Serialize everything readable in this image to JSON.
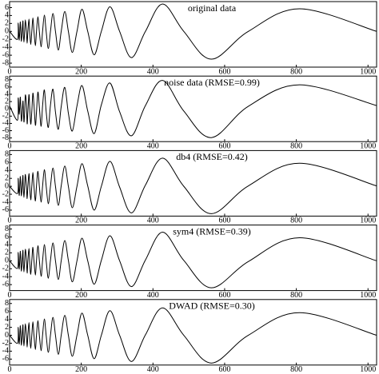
{
  "chart_data": [
    {
      "type": "line",
      "title": "original data",
      "color": "#000000",
      "x": [
        0,
        22,
        24,
        27,
        30,
        33,
        37,
        38,
        40,
        42,
        44,
        47,
        49,
        51,
        54,
        56,
        59,
        62,
        65,
        68,
        72,
        75,
        79,
        83,
        88,
        92,
        97,
        102,
        108,
        114,
        121,
        128,
        136,
        144,
        154,
        164,
        175,
        188,
        202,
        218,
        236,
        256,
        280,
        307,
        340,
        379,
        427,
        486,
        563,
        666,
        809,
        1024
      ],
      "values": [
        0,
        -2.0,
        2.1,
        -2.2,
        2.4,
        -2.5,
        2.6,
        0,
        -2.7,
        0,
        2.9,
        0,
        -3.0,
        0,
        3.1,
        0,
        -3.3,
        0,
        3.4,
        0,
        -3.6,
        0,
        3.7,
        0,
        -3.9,
        0,
        4.1,
        0,
        -4.3,
        0,
        4.5,
        0,
        -4.7,
        0,
        5.0,
        0,
        -5.3,
        0,
        5.6,
        0,
        -5.9,
        0,
        6.2,
        0,
        -6.6,
        0,
        6.9,
        0,
        -7.0,
        0,
        5.7,
        0
      ],
      "xlim": [
        0,
        1024
      ],
      "ylim": [
        -9,
        7.5
      ],
      "xticks": [
        0,
        200,
        400,
        600,
        800,
        1000
      ],
      "yticks": [
        -8,
        -6,
        -4,
        -2,
        0,
        2,
        4,
        6
      ]
    },
    {
      "type": "line",
      "title": "noise data (RMSE=0.99)",
      "color": "#000000",
      "x": [
        0,
        22,
        24,
        27,
        30,
        33,
        37,
        38,
        40,
        42,
        44,
        47,
        49,
        51,
        54,
        56,
        59,
        62,
        65,
        68,
        72,
        75,
        79,
        83,
        88,
        92,
        97,
        102,
        108,
        114,
        121,
        128,
        136,
        144,
        154,
        164,
        175,
        188,
        202,
        218,
        236,
        256,
        280,
        307,
        340,
        379,
        427,
        486,
        563,
        666,
        809,
        1024
      ],
      "values": [
        0.8,
        -3.1,
        3.0,
        -1.5,
        3.2,
        -3.4,
        1.9,
        0.9,
        -3.6,
        -0.8,
        3.8,
        1.2,
        -4.1,
        -1.0,
        3.9,
        0.7,
        -4.2,
        -0.6,
        4.3,
        1.1,
        -4.5,
        -0.9,
        4.6,
        0.5,
        -4.8,
        0.8,
        5.2,
        -0.7,
        -5.1,
        1.0,
        5.4,
        -0.9,
        -5.6,
        0.6,
        5.9,
        -1.2,
        -6.1,
        0.8,
        6.4,
        -0.6,
        -6.8,
        1.1,
        7.1,
        -0.8,
        -7.4,
        0.9,
        7.8,
        -0.6,
        -7.9,
        0.7,
        6.6,
        0.9
      ],
      "xlim": [
        0,
        1024
      ],
      "ylim": [
        -9,
        9
      ],
      "xticks": [
        0,
        200,
        400,
        600,
        800,
        1000
      ],
      "yticks": [
        -8,
        -6,
        -4,
        -2,
        0,
        2,
        4,
        6,
        8
      ]
    },
    {
      "type": "line",
      "title": "db4 (RMSE=0.42)",
      "color": "#000000",
      "x": [
        0,
        22,
        24,
        27,
        30,
        33,
        37,
        38,
        40,
        42,
        44,
        47,
        49,
        51,
        54,
        56,
        59,
        62,
        65,
        68,
        72,
        75,
        79,
        83,
        88,
        92,
        97,
        102,
        108,
        114,
        121,
        128,
        136,
        144,
        154,
        164,
        175,
        188,
        202,
        218,
        236,
        256,
        280,
        307,
        340,
        379,
        427,
        486,
        563,
        666,
        809,
        1024
      ],
      "values": [
        0,
        -1.8,
        2.0,
        -2.3,
        2.5,
        -2.4,
        2.7,
        0.1,
        -2.8,
        0.1,
        3.0,
        -0.1,
        -3.1,
        0,
        3.2,
        0.1,
        -3.4,
        0,
        3.5,
        0,
        -3.7,
        0.1,
        3.8,
        0,
        -4.0,
        0,
        4.2,
        0.1,
        -4.4,
        0,
        4.6,
        0,
        -4.8,
        0.1,
        5.1,
        0,
        -5.4,
        0,
        5.7,
        0.1,
        -6.0,
        0,
        6.3,
        -0.2,
        -6.7,
        0.3,
        7.1,
        0,
        -6.9,
        0.1,
        5.8,
        0.1
      ],
      "xlim": [
        0,
        1024
      ],
      "ylim": [
        -7.5,
        9
      ],
      "xticks": [
        0,
        200,
        400,
        600,
        800,
        1000
      ],
      "yticks": [
        -6,
        -4,
        -2,
        0,
        2,
        4,
        6,
        8
      ]
    },
    {
      "type": "line",
      "title": "sym4 (RMSE=0.39)",
      "color": "#000000",
      "x": [
        0,
        22,
        24,
        27,
        30,
        33,
        37,
        38,
        40,
        42,
        44,
        47,
        49,
        51,
        54,
        56,
        59,
        62,
        65,
        68,
        72,
        75,
        79,
        83,
        88,
        92,
        97,
        102,
        108,
        114,
        121,
        128,
        136,
        144,
        154,
        164,
        175,
        188,
        202,
        218,
        236,
        256,
        280,
        307,
        340,
        379,
        427,
        486,
        563,
        666,
        809,
        1024
      ],
      "values": [
        0,
        -1.9,
        2.1,
        -2.1,
        2.4,
        -2.6,
        2.6,
        0,
        -2.8,
        0,
        2.9,
        0.1,
        -3.1,
        0,
        3.1,
        0,
        -3.4,
        0.1,
        3.4,
        0,
        -3.6,
        0,
        3.8,
        0.1,
        -3.9,
        0,
        4.1,
        0,
        -4.4,
        0.1,
        4.5,
        0,
        -4.7,
        0,
        5.1,
        0.1,
        -5.3,
        0,
        5.7,
        0,
        -5.9,
        0.1,
        6.3,
        0,
        -6.5,
        0.2,
        7.2,
        0.1,
        -6.8,
        -0.2,
        5.8,
        0
      ],
      "xlim": [
        0,
        1024
      ],
      "ylim": [
        -7.5,
        9
      ],
      "xticks": [
        0,
        200,
        400,
        600,
        800,
        1000
      ],
      "yticks": [
        -6,
        -4,
        -2,
        0,
        2,
        4,
        6,
        8
      ]
    },
    {
      "type": "line",
      "title": "DWAD (RMSE=0.30)",
      "color": "#000000",
      "x": [
        0,
        22,
        24,
        27,
        30,
        33,
        37,
        38,
        40,
        42,
        44,
        47,
        49,
        51,
        54,
        56,
        59,
        62,
        65,
        68,
        72,
        75,
        79,
        83,
        88,
        92,
        97,
        102,
        108,
        114,
        121,
        128,
        136,
        144,
        154,
        164,
        175,
        188,
        202,
        218,
        236,
        256,
        280,
        307,
        340,
        379,
        427,
        486,
        563,
        666,
        809,
        1024
      ],
      "values": [
        0,
        -2.0,
        2.0,
        -2.2,
        2.4,
        -2.5,
        2.6,
        0,
        -2.7,
        0,
        2.9,
        0,
        -3.0,
        0,
        3.2,
        0,
        -3.3,
        0,
        3.4,
        0,
        -3.6,
        0,
        3.7,
        0,
        -3.9,
        0,
        4.1,
        0,
        -4.3,
        0,
        4.5,
        0,
        -4.8,
        0,
        5.0,
        0,
        -5.3,
        0,
        5.6,
        0,
        -5.9,
        0,
        6.2,
        0,
        -6.6,
        0.1,
        6.9,
        0,
        -7.0,
        0,
        5.7,
        0
      ],
      "xlim": [
        0,
        1024
      ],
      "ylim": [
        -7.5,
        9
      ],
      "xticks": [
        0,
        200,
        400,
        600,
        800,
        1000
      ],
      "yticks": [
        -6,
        -4,
        -2,
        0,
        2,
        4,
        6,
        8
      ]
    }
  ]
}
